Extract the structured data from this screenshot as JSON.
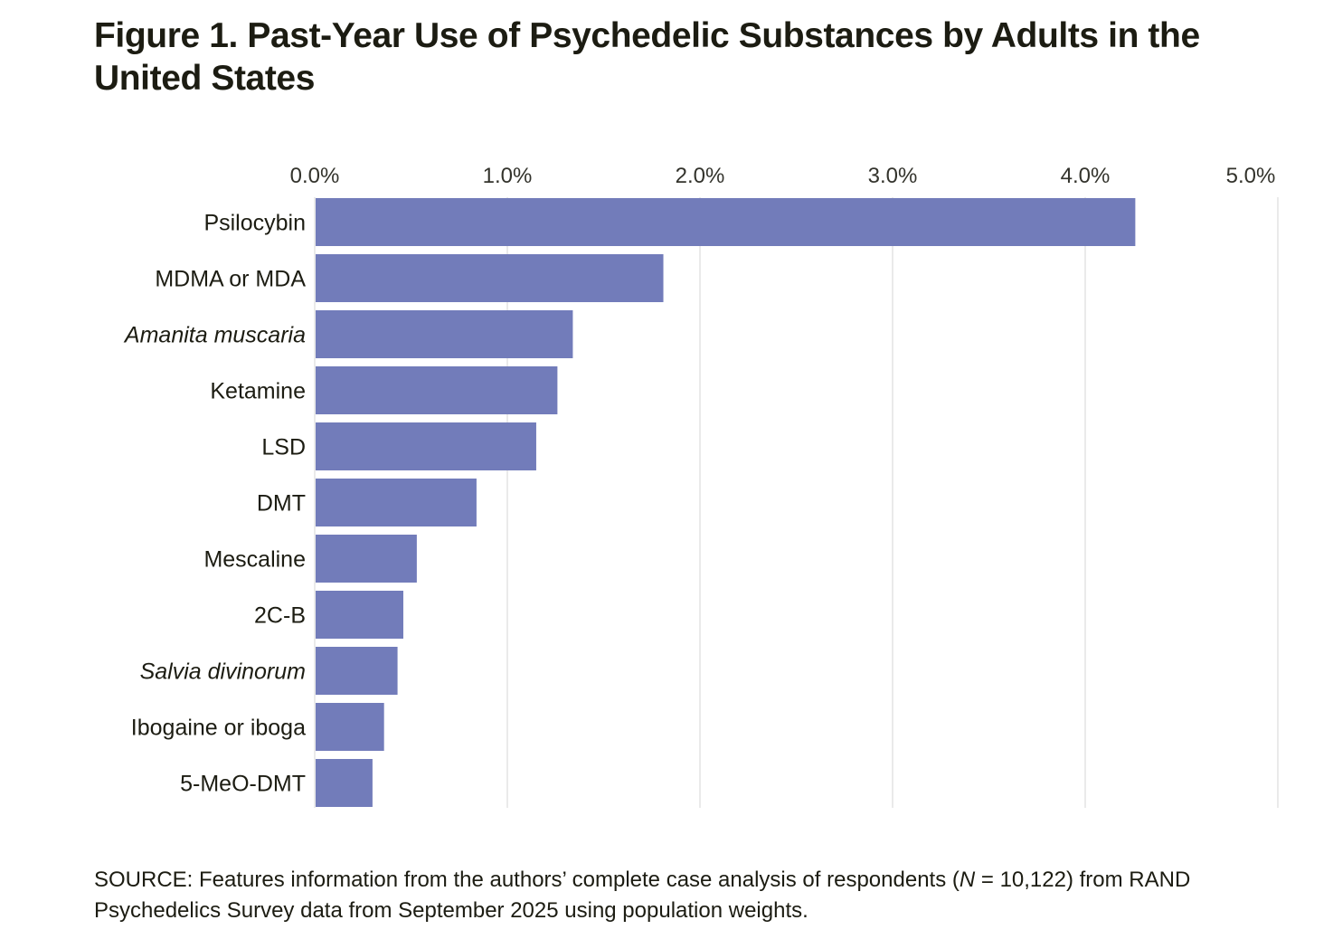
{
  "figure": {
    "label": "Figure 1.",
    "title": "Past-Year Use of Psychedelic Substances by Adults in the United States"
  },
  "source": {
    "prefix": "SOURCE: Features information from the authors’ complete case analysis of respondents (",
    "n_symbol": "N",
    "suffix": " = 10,122) from RAND Psychedelics Survey data from September 2025 using population weights."
  },
  "colors": {
    "bar": "#727cba",
    "grid": "#e3e3e3",
    "text": "#1c1c12"
  },
  "chart_data": {
    "type": "bar",
    "orientation": "horizontal",
    "title": "Past-Year Use of Psychedelic Substances by Adults in the United States",
    "xlabel": "",
    "ylabel": "",
    "xlim": [
      0,
      5
    ],
    "xticks": [
      0,
      1,
      2,
      3,
      4,
      5
    ],
    "xtick_labels": [
      "0.0%",
      "1.0%",
      "2.0%",
      "3.0%",
      "4.0%",
      "5.0%"
    ],
    "axis_position": "top",
    "grid": true,
    "categories": [
      "Psilocybin",
      "MDMA or MDA",
      "Amanita muscaria",
      "Ketamine",
      "LSD",
      "DMT",
      "Mescaline",
      "2C-B",
      "Salvia divinorum",
      "Ibogaine or iboga",
      "5-MeO-DMT"
    ],
    "italic_categories": [
      "Amanita muscaria",
      "Salvia divinorum"
    ],
    "values": [
      4.26,
      1.81,
      1.34,
      1.26,
      1.15,
      0.84,
      0.53,
      0.46,
      0.43,
      0.36,
      0.3
    ],
    "unit": "%"
  }
}
